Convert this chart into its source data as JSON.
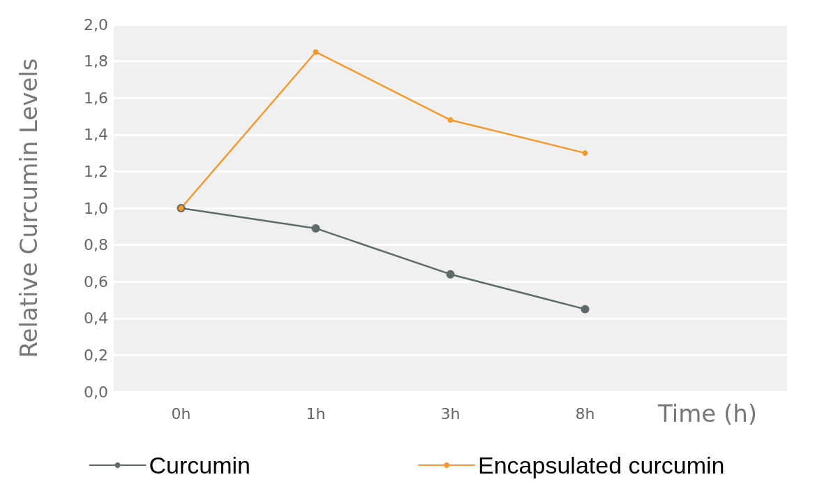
{
  "chart_data": {
    "type": "line",
    "xlabel": "Time (h)",
    "ylabel": "Relative Curcumin Levels",
    "categories": [
      "0h",
      "1h",
      "3h",
      "8h"
    ],
    "series": [
      {
        "name": "Curcumin",
        "color": "#5f6b6b",
        "values": [
          1.0,
          0.89,
          0.64,
          0.45
        ]
      },
      {
        "name": "Encapsulated curcumin",
        "color": "#f29a2e",
        "values": [
          1.0,
          1.85,
          1.48,
          1.3
        ]
      }
    ],
    "ylim": [
      0,
      2
    ],
    "yticks": [
      {
        "value": 0,
        "label": "0,0"
      },
      {
        "value": 0.2,
        "label": "0,2"
      },
      {
        "value": 0.4,
        "label": "0,4"
      },
      {
        "value": 0.6,
        "label": "0,6"
      },
      {
        "value": 0.8,
        "label": "0,8"
      },
      {
        "value": 1,
        "label": "1,0"
      },
      {
        "value": 1.2,
        "label": "1,2"
      },
      {
        "value": 1.4,
        "label": "1,4"
      },
      {
        "value": 1.6,
        "label": "1,6"
      },
      {
        "value": 1.8,
        "label": "1,8"
      },
      {
        "value": 2,
        "label": "2,0"
      }
    ],
    "grid": "y",
    "legend": "bottom",
    "marker": "circle",
    "line_style": "solid"
  }
}
